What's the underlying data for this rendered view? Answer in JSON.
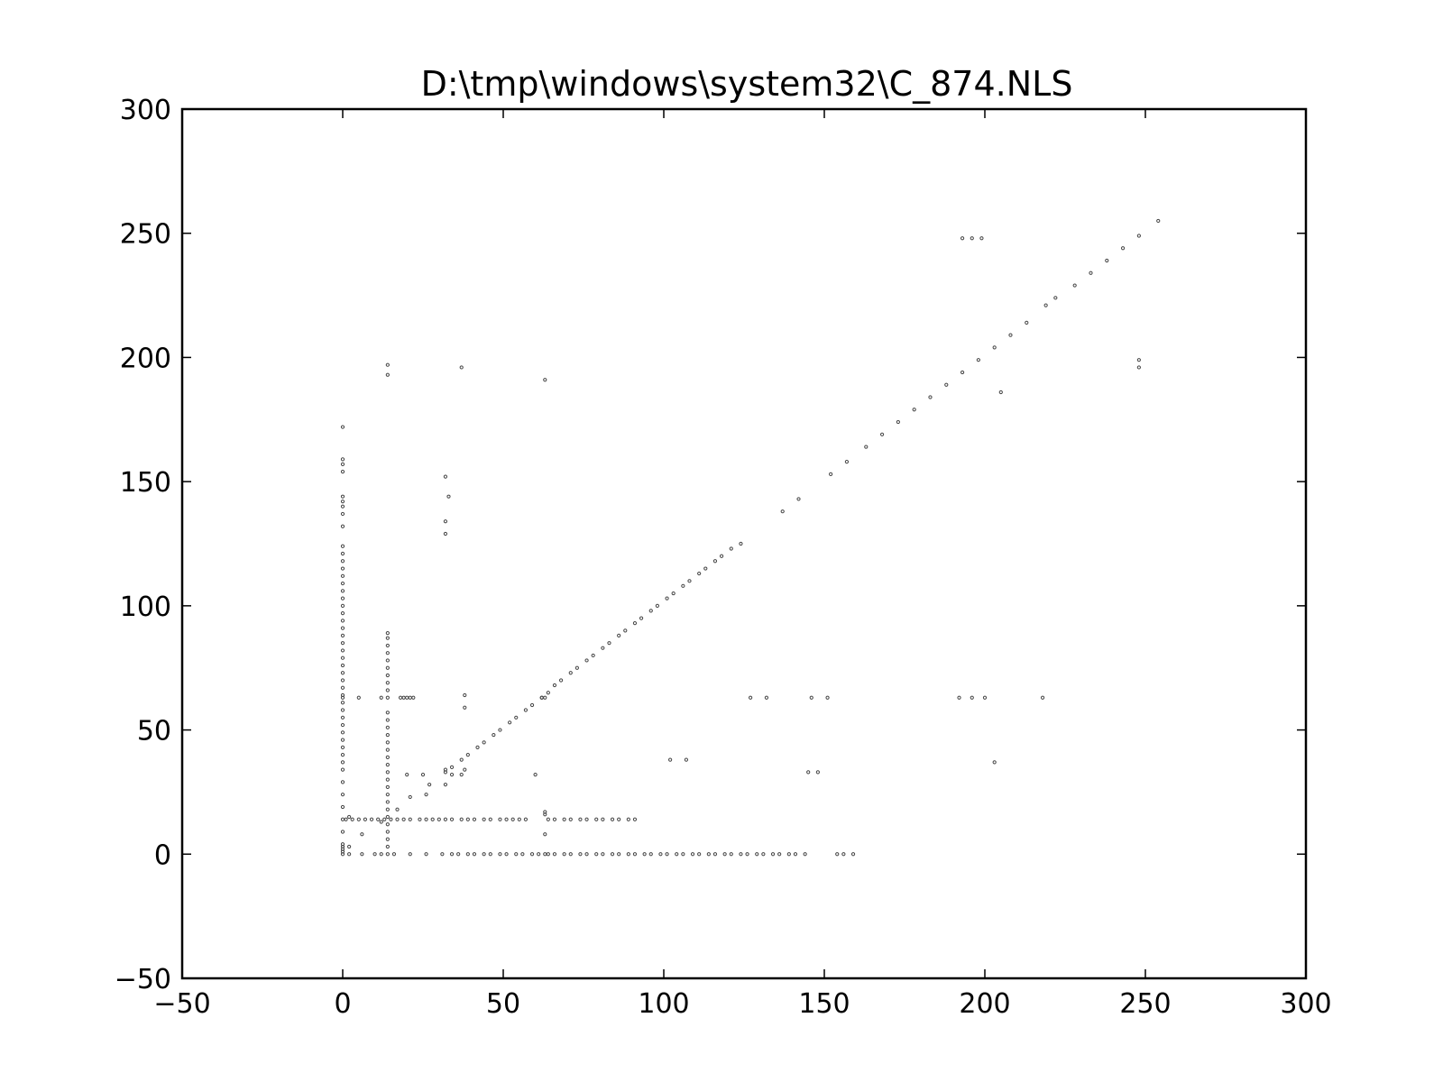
{
  "chart_data": {
    "type": "scatter",
    "title": "D:\\tmp\\windows\\system32\\C_874.NLS",
    "xlabel": "",
    "ylabel": "",
    "xlim": [
      -50,
      300
    ],
    "ylim": [
      -50,
      300
    ],
    "xticks": [
      -50,
      0,
      50,
      100,
      150,
      200,
      250,
      300
    ],
    "yticks": [
      -50,
      0,
      50,
      100,
      150,
      200,
      250,
      300
    ],
    "xtick_labels": [
      "−50",
      "0",
      "50",
      "100",
      "150",
      "200",
      "250",
      "300"
    ],
    "ytick_labels": [
      "−50",
      "0",
      "50",
      "100",
      "150",
      "200",
      "250",
      "300"
    ],
    "grid": false,
    "marker": "hollow-circle",
    "series": [
      {
        "points": [
          [
            0,
            0
          ],
          [
            0,
            1
          ],
          [
            0,
            2
          ],
          [
            0,
            3
          ],
          [
            0,
            4
          ],
          [
            0,
            9
          ],
          [
            0,
            14
          ],
          [
            0,
            19
          ],
          [
            0,
            24
          ],
          [
            0,
            29
          ],
          [
            0,
            34
          ],
          [
            0,
            37
          ],
          [
            0,
            40
          ],
          [
            0,
            43
          ],
          [
            0,
            46
          ],
          [
            0,
            49
          ],
          [
            0,
            52
          ],
          [
            0,
            55
          ],
          [
            0,
            58
          ],
          [
            0,
            61
          ],
          [
            0,
            63
          ],
          [
            0,
            64
          ],
          [
            0,
            67
          ],
          [
            0,
            70
          ],
          [
            0,
            73
          ],
          [
            0,
            76
          ],
          [
            0,
            79
          ],
          [
            0,
            82
          ],
          [
            0,
            85
          ],
          [
            0,
            88
          ],
          [
            0,
            91
          ],
          [
            0,
            94
          ],
          [
            0,
            97
          ],
          [
            0,
            100
          ],
          [
            0,
            103
          ],
          [
            0,
            106
          ],
          [
            0,
            109
          ],
          [
            0,
            112
          ],
          [
            0,
            115
          ],
          [
            0,
            118
          ],
          [
            0,
            121
          ],
          [
            0,
            124
          ],
          [
            0,
            132
          ],
          [
            0,
            137
          ],
          [
            0,
            140
          ],
          [
            0,
            142
          ],
          [
            0,
            144
          ],
          [
            0,
            154
          ],
          [
            0,
            157
          ],
          [
            0,
            159
          ],
          [
            0,
            172
          ],
          [
            14,
            0
          ],
          [
            14,
            3
          ],
          [
            14,
            6
          ],
          [
            14,
            9
          ],
          [
            14,
            12
          ],
          [
            14,
            15
          ],
          [
            14,
            18
          ],
          [
            14,
            21
          ],
          [
            14,
            24
          ],
          [
            14,
            27
          ],
          [
            14,
            30
          ],
          [
            14,
            33
          ],
          [
            14,
            36
          ],
          [
            14,
            39
          ],
          [
            14,
            42
          ],
          [
            14,
            45
          ],
          [
            14,
            48
          ],
          [
            14,
            51
          ],
          [
            14,
            54
          ],
          [
            14,
            57
          ],
          [
            14,
            63
          ],
          [
            14,
            66
          ],
          [
            14,
            69
          ],
          [
            14,
            72
          ],
          [
            14,
            75
          ],
          [
            14,
            78
          ],
          [
            14,
            81
          ],
          [
            14,
            84
          ],
          [
            14,
            87
          ],
          [
            14,
            89
          ],
          [
            14,
            193
          ],
          [
            14,
            197
          ],
          [
            1,
            14
          ],
          [
            3,
            14
          ],
          [
            5,
            14
          ],
          [
            7,
            14
          ],
          [
            9,
            14
          ],
          [
            11,
            14
          ],
          [
            13,
            14
          ],
          [
            15,
            14
          ],
          [
            17,
            14
          ],
          [
            19,
            14
          ],
          [
            21,
            14
          ],
          [
            24,
            14
          ],
          [
            26,
            14
          ],
          [
            28,
            14
          ],
          [
            30,
            14
          ],
          [
            32,
            14
          ],
          [
            34,
            14
          ],
          [
            37,
            14
          ],
          [
            39,
            14
          ],
          [
            41,
            14
          ],
          [
            44,
            14
          ],
          [
            46,
            14
          ],
          [
            49,
            14
          ],
          [
            51,
            14
          ],
          [
            53,
            14
          ],
          [
            55,
            14
          ],
          [
            57,
            14
          ],
          [
            64,
            14
          ],
          [
            66,
            14
          ],
          [
            69,
            14
          ],
          [
            71,
            14
          ],
          [
            74,
            14
          ],
          [
            76,
            14
          ],
          [
            79,
            14
          ],
          [
            81,
            14
          ],
          [
            84,
            14
          ],
          [
            86,
            14
          ],
          [
            89,
            14
          ],
          [
            91,
            14
          ],
          [
            2,
            0
          ],
          [
            6,
            0
          ],
          [
            10,
            0
          ],
          [
            12,
            0
          ],
          [
            16,
            0
          ],
          [
            21,
            0
          ],
          [
            26,
            0
          ],
          [
            31,
            0
          ],
          [
            34,
            0
          ],
          [
            36,
            0
          ],
          [
            39,
            0
          ],
          [
            41,
            0
          ],
          [
            44,
            0
          ],
          [
            46,
            0
          ],
          [
            49,
            0
          ],
          [
            51,
            0
          ],
          [
            54,
            0
          ],
          [
            56,
            0
          ],
          [
            59,
            0
          ],
          [
            61,
            0
          ],
          [
            63,
            0
          ],
          [
            64,
            0
          ],
          [
            66,
            0
          ],
          [
            69,
            0
          ],
          [
            71,
            0
          ],
          [
            74,
            0
          ],
          [
            76,
            0
          ],
          [
            79,
            0
          ],
          [
            81,
            0
          ],
          [
            84,
            0
          ],
          [
            86,
            0
          ],
          [
            89,
            0
          ],
          [
            91,
            0
          ],
          [
            94,
            0
          ],
          [
            96,
            0
          ],
          [
            99,
            0
          ],
          [
            101,
            0
          ],
          [
            104,
            0
          ],
          [
            106,
            0
          ],
          [
            109,
            0
          ],
          [
            111,
            0
          ],
          [
            114,
            0
          ],
          [
            116,
            0
          ],
          [
            119,
            0
          ],
          [
            121,
            0
          ],
          [
            124,
            0
          ],
          [
            126,
            0
          ],
          [
            129,
            0
          ],
          [
            131,
            0
          ],
          [
            134,
            0
          ],
          [
            136,
            0
          ],
          [
            139,
            0
          ],
          [
            141,
            0
          ],
          [
            144,
            0
          ],
          [
            154,
            0
          ],
          [
            156,
            0
          ],
          [
            159,
            0
          ],
          [
            2,
            15
          ],
          [
            2,
            3
          ],
          [
            6,
            8
          ],
          [
            12,
            13
          ],
          [
            17,
            18
          ],
          [
            21,
            23
          ],
          [
            25,
            32
          ],
          [
            26,
            24
          ],
          [
            27,
            28
          ],
          [
            20,
            32
          ],
          [
            32,
            28
          ],
          [
            32,
            33
          ],
          [
            32,
            34
          ],
          [
            34,
            32
          ],
          [
            34,
            35
          ],
          [
            37,
            32
          ],
          [
            38,
            34
          ],
          [
            37,
            38
          ],
          [
            39,
            40
          ],
          [
            42,
            43
          ],
          [
            44,
            45
          ],
          [
            47,
            48
          ],
          [
            49,
            50
          ],
          [
            52,
            53
          ],
          [
            54,
            55
          ],
          [
            57,
            58
          ],
          [
            59,
            60
          ],
          [
            62,
            63
          ],
          [
            64,
            65
          ],
          [
            66,
            68
          ],
          [
            68,
            70
          ],
          [
            71,
            73
          ],
          [
            73,
            75
          ],
          [
            76,
            78
          ],
          [
            78,
            80
          ],
          [
            81,
            83
          ],
          [
            83,
            85
          ],
          [
            86,
            88
          ],
          [
            88,
            90
          ],
          [
            91,
            93
          ],
          [
            93,
            95
          ],
          [
            96,
            98
          ],
          [
            98,
            100
          ],
          [
            101,
            103
          ],
          [
            103,
            105
          ],
          [
            106,
            108
          ],
          [
            108,
            110
          ],
          [
            111,
            113
          ],
          [
            113,
            115
          ],
          [
            116,
            118
          ],
          [
            118,
            120
          ],
          [
            121,
            123
          ],
          [
            124,
            125
          ],
          [
            137,
            138
          ],
          [
            142,
            143
          ],
          [
            152,
            153
          ],
          [
            157,
            158
          ],
          [
            163,
            164
          ],
          [
            168,
            169
          ],
          [
            173,
            174
          ],
          [
            178,
            179
          ],
          [
            183,
            184
          ],
          [
            188,
            189
          ],
          [
            193,
            194
          ],
          [
            198,
            199
          ],
          [
            203,
            204
          ],
          [
            208,
            209
          ],
          [
            213,
            214
          ],
          [
            219,
            221
          ],
          [
            222,
            224
          ],
          [
            228,
            229
          ],
          [
            233,
            234
          ],
          [
            238,
            239
          ],
          [
            243,
            244
          ],
          [
            248,
            249
          ],
          [
            254,
            255
          ],
          [
            5,
            63
          ],
          [
            12,
            63
          ],
          [
            18,
            63
          ],
          [
            19,
            63
          ],
          [
            20,
            63
          ],
          [
            21,
            63
          ],
          [
            22,
            63
          ],
          [
            38,
            64
          ],
          [
            38,
            59
          ],
          [
            62,
            63
          ],
          [
            63,
            63
          ],
          [
            127,
            63
          ],
          [
            132,
            63
          ],
          [
            146,
            63
          ],
          [
            151,
            63
          ],
          [
            192,
            63
          ],
          [
            196,
            63
          ],
          [
            200,
            63
          ],
          [
            218,
            63
          ],
          [
            32,
            129
          ],
          [
            32,
            134
          ],
          [
            32,
            152
          ],
          [
            33,
            144
          ],
          [
            37,
            196
          ],
          [
            63,
            191
          ],
          [
            60,
            32
          ],
          [
            63,
            16
          ],
          [
            63,
            17
          ],
          [
            63,
            8
          ],
          [
            102,
            38
          ],
          [
            107,
            38
          ],
          [
            145,
            33
          ],
          [
            148,
            33
          ],
          [
            193,
            248
          ],
          [
            196,
            248
          ],
          [
            199,
            248
          ],
          [
            248,
            196
          ],
          [
            248,
            199
          ],
          [
            205,
            186
          ],
          [
            203,
            37
          ]
        ]
      }
    ]
  }
}
